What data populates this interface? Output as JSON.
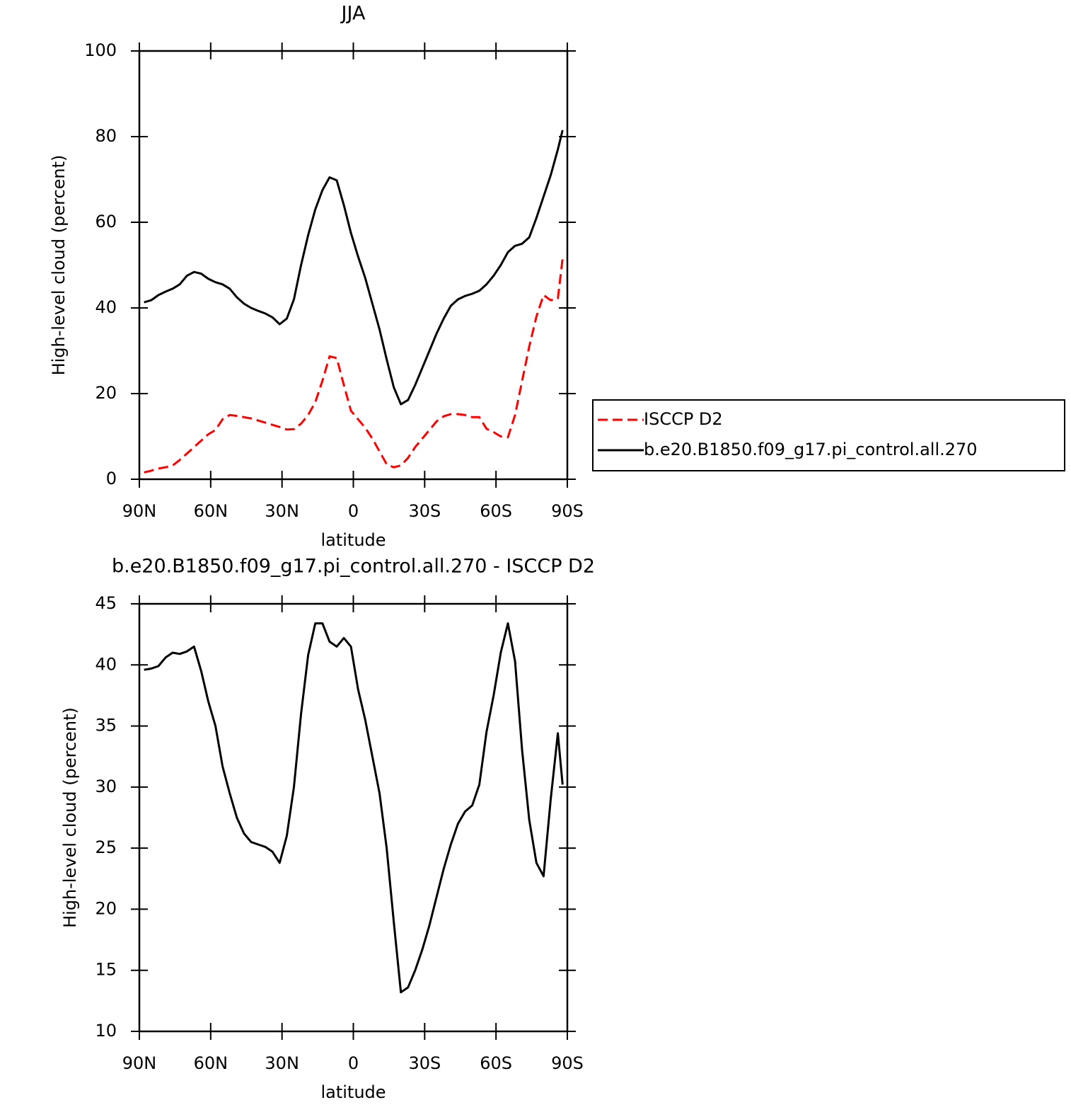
{
  "chart_data": [
    {
      "type": "line",
      "title": "JJA",
      "xlabel": "latitude",
      "ylabel": "High-level cloud (percent)",
      "x": [
        88,
        85,
        82,
        79,
        76,
        73,
        70,
        67,
        64,
        61,
        58,
        55,
        52,
        49,
        46,
        43,
        40,
        37,
        34,
        31,
        28,
        25,
        22,
        19,
        16,
        13,
        10,
        7,
        4,
        1,
        -2,
        -5,
        -8,
        -11,
        -14,
        -17,
        -20,
        -23,
        -26,
        -29,
        -32,
        -35,
        -38,
        -41,
        -44,
        -47,
        -50,
        -53,
        -56,
        -59,
        -62,
        -65,
        -68,
        -71,
        -74,
        -77,
        -80,
        -83,
        -86,
        -88
      ],
      "series": [
        {
          "name": "ISCCP D2",
          "color": "#ff0000",
          "dashed": true,
          "values": [
            1.6,
            2,
            2.5,
            2.8,
            3.2,
            4.5,
            6,
            7.5,
            9,
            10.5,
            11.5,
            14,
            15,
            14.8,
            14.5,
            14.2,
            13.7,
            13.2,
            12.7,
            12.2,
            11.6,
            11.7,
            13,
            15,
            18,
            23,
            28.7,
            28.3,
            22,
            16,
            14,
            12,
            9.5,
            6.5,
            3.5,
            2.8,
            3.2,
            5,
            7.5,
            9.5,
            11.5,
            13.5,
            14.7,
            15.2,
            15.2,
            15,
            14.5,
            14.5,
            11.8,
            11,
            10,
            9.8,
            15,
            23,
            31,
            38,
            43,
            41.8,
            42.2,
            51.5
          ]
        },
        {
          "name": "b.e20.B1850.f09_g17.pi_control.all.270",
          "color": "#000000",
          "dashed": false,
          "values": [
            41.3,
            41.8,
            43,
            43.8,
            44.5,
            45.5,
            47.5,
            48.4,
            48,
            46.8,
            46,
            45.5,
            44.5,
            42.5,
            41,
            40,
            39.3,
            38.7,
            37.8,
            36.2,
            37.5,
            42,
            50,
            57,
            63,
            67.5,
            70.5,
            69.8,
            64,
            57.5,
            52,
            47,
            41,
            35,
            28,
            21.5,
            17.5,
            18.5,
            22,
            26,
            30,
            34,
            37.5,
            40.5,
            42,
            42.8,
            43.3,
            44,
            45.5,
            47.5,
            50,
            53,
            54.5,
            55,
            56.5,
            61,
            66,
            71,
            77,
            81.5
          ]
        }
      ],
      "xlim": [
        90,
        -90
      ],
      "xticks": [
        {
          "value": 90,
          "label": "90N"
        },
        {
          "value": 60,
          "label": "60N"
        },
        {
          "value": 30,
          "label": "30N"
        },
        0,
        {
          "value": -30,
          "label": "30S"
        },
        {
          "value": -60,
          "label": "60S"
        },
        {
          "value": -90,
          "label": "90S"
        }
      ],
      "ylim": [
        0,
        100
      ],
      "yticks": [
        0,
        20,
        40,
        60,
        80,
        100
      ],
      "legend": "right"
    },
    {
      "type": "line",
      "title": "b.e20.B1850.f09_g17.pi_control.all.270 - ISCCP D2",
      "xlabel": "latitude",
      "ylabel": "High-level cloud (percent)",
      "x": [
        88,
        85,
        82,
        79,
        76,
        73,
        70,
        67,
        64,
        61,
        58,
        55,
        52,
        49,
        46,
        43,
        40,
        37,
        34,
        31,
        28,
        25,
        22,
        19,
        16,
        13,
        10,
        7,
        4,
        1,
        -2,
        -5,
        -8,
        -11,
        -14,
        -17,
        -20,
        -23,
        -26,
        -29,
        -32,
        -35,
        -38,
        -41,
        -44,
        -47,
        -50,
        -53,
        -56,
        -59,
        -62,
        -65,
        -68,
        -71,
        -74,
        -77,
        -80,
        -83,
        -86,
        -88
      ],
      "color": "#000000",
      "values": [
        39.6,
        39.7,
        39.9,
        40.6,
        41.0,
        40.9,
        41.1,
        41.5,
        39.5,
        37,
        35,
        31.7,
        29.5,
        27.5,
        26.2,
        25.5,
        25.3,
        25.1,
        24.7,
        23.8,
        26,
        30,
        36,
        40.8,
        43.4,
        43.4,
        41.9,
        41.5,
        42.2,
        41.5,
        38,
        35.5,
        32.5,
        29.5,
        25,
        19,
        13.2,
        13.6,
        15,
        16.7,
        18.7,
        21,
        23.3,
        25.3,
        27,
        28,
        28.5,
        30.2,
        34.5,
        37.5,
        41,
        43.4,
        40.3,
        33,
        27.3,
        23.8,
        22.7,
        29,
        34.4,
        30.2
      ],
      "xlim": [
        90,
        -90
      ],
      "xticks": [
        {
          "value": 90,
          "label": "90N"
        },
        {
          "value": 60,
          "label": "60N"
        },
        {
          "value": 30,
          "label": "30N"
        },
        0,
        {
          "value": -30,
          "label": "30S"
        },
        {
          "value": -60,
          "label": "60S"
        },
        {
          "value": -90,
          "label": "90S"
        }
      ],
      "ylim": [
        10,
        45
      ],
      "yticks": [
        10,
        15,
        20,
        25,
        30,
        35,
        40,
        45
      ]
    }
  ]
}
